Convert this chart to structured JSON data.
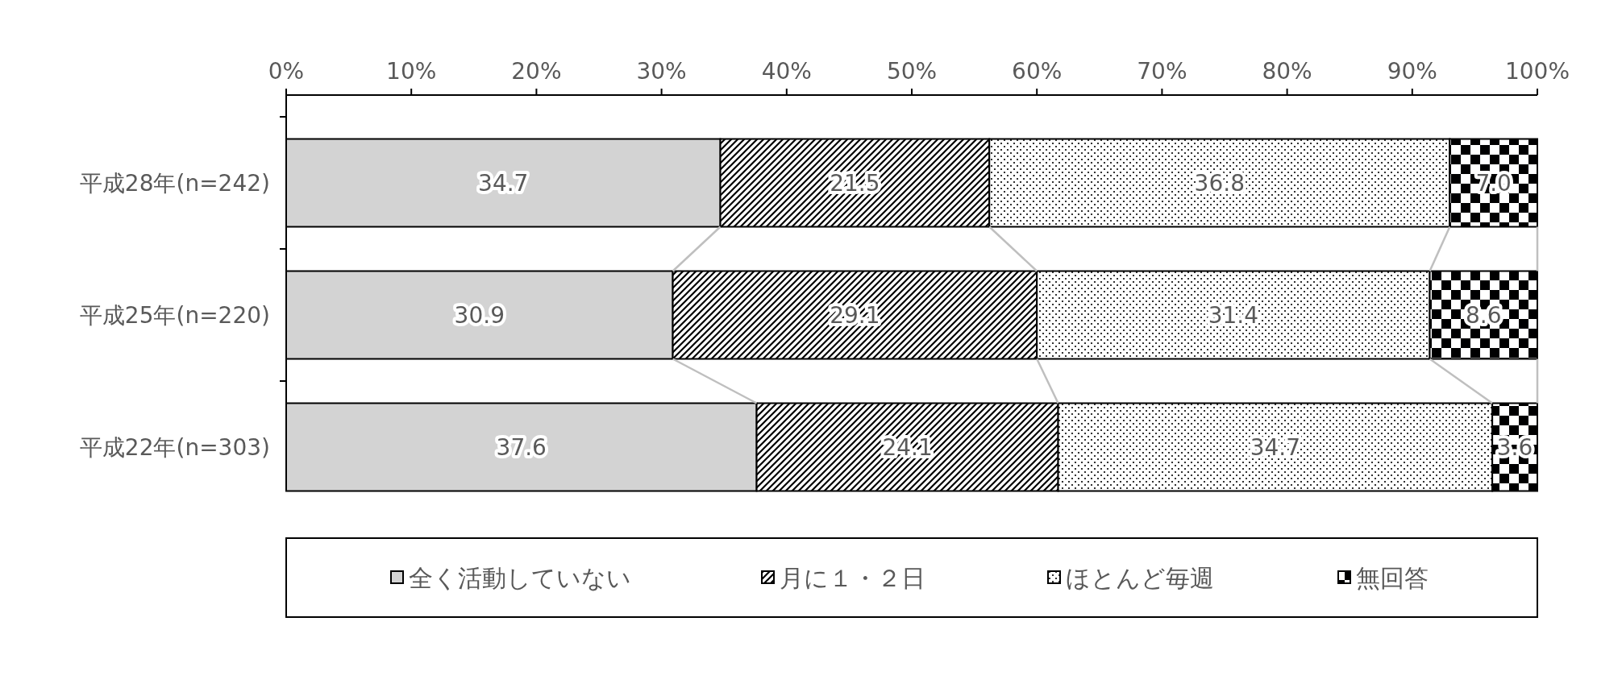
{
  "chart_data": {
    "type": "bar",
    "orientation": "horizontal",
    "stacked": true,
    "categories": [
      "平成28年(n=242)",
      "平成25年(n=220)",
      "平成22年(n=303)"
    ],
    "series": [
      {
        "name": "全く活動していない",
        "color": "#d3d3d3",
        "values": [
          34.7,
          30.9,
          37.6
        ],
        "value_labels": [
          "34.7",
          "30.9",
          "37.6"
        ]
      },
      {
        "name": "月に１・２日",
        "color": "#000000",
        "values": [
          21.5,
          29.1,
          24.1
        ],
        "value_labels": [
          "21.5",
          "29.1",
          "24.1"
        ]
      },
      {
        "name": "ほとんど毎週",
        "color": "#000000",
        "values": [
          36.8,
          31.4,
          34.7
        ],
        "value_labels": [
          "36.8",
          "31.4",
          "34.7"
        ]
      },
      {
        "name": "無回答",
        "color": "#000001",
        "values": [
          7.0,
          8.6,
          3.6
        ],
        "value_labels": [
          "7.0",
          "8.6",
          "3.6"
        ]
      }
    ],
    "xlim": [
      0,
      100
    ],
    "xticks": [
      {
        "value": 0,
        "label": "0%"
      },
      {
        "value": 10,
        "label": "10%"
      },
      {
        "value": 20,
        "label": "20%"
      },
      {
        "value": 30,
        "label": "30%"
      },
      {
        "value": 40,
        "label": "40%"
      },
      {
        "value": 50,
        "label": "50%"
      },
      {
        "value": 60,
        "label": "60%"
      },
      {
        "value": 70,
        "label": "70%"
      },
      {
        "value": 80,
        "label": "80%"
      },
      {
        "value": 90,
        "label": "90%"
      },
      {
        "value": 100,
        "label": "100%"
      }
    ],
    "legend": "bottom",
    "grid": false
  }
}
